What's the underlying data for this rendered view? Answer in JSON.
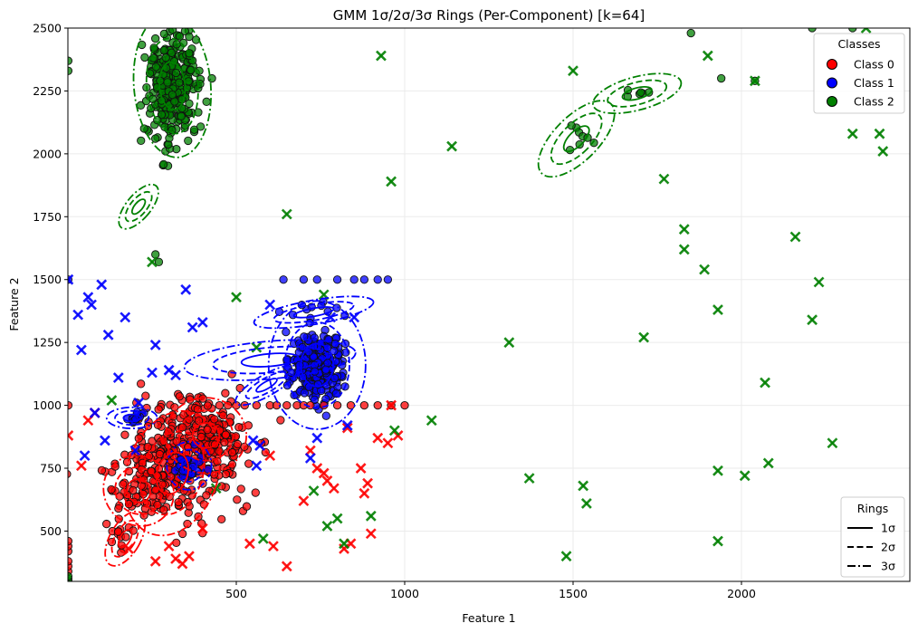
{
  "chart_data": {
    "type": "scatter",
    "title": "GMM 1σ/2σ/3σ Rings (Per-Component) [k=64]",
    "xlabel": "Feature 1",
    "ylabel": "Feature 2",
    "xlim": [
      0,
      2500
    ],
    "ylim": [
      300,
      2500
    ],
    "x_ticks": [
      500,
      1000,
      1500,
      2000
    ],
    "y_ticks": [
      500,
      750,
      1000,
      1250,
      1500,
      1750,
      2000,
      2250,
      2500
    ],
    "grid": true,
    "colors": {
      "Class 0": "#ff0000",
      "Class 1": "#0000ff",
      "Class 2": "#008000"
    },
    "legend_classes": {
      "title": "Classes",
      "placement": "top-right",
      "entries": [
        "Class 0",
        "Class 1",
        "Class 2"
      ]
    },
    "legend_rings": {
      "title": "Rings",
      "placement": "bottom-right",
      "entries": [
        {
          "label": "1σ",
          "style": "solid"
        },
        {
          "label": "2σ",
          "style": "dashed"
        },
        {
          "label": "3σ",
          "style": "dashdot"
        }
      ]
    },
    "clusters": [
      {
        "class": "Class 0",
        "marker": "circle",
        "cx": 330,
        "cy": 780,
        "sx": 85,
        "sy": 130,
        "n": 260
      },
      {
        "class": "Class 0",
        "marker": "circle",
        "cx": 420,
        "cy": 880,
        "sx": 55,
        "sy": 70,
        "n": 120
      },
      {
        "class": "Class 0",
        "marker": "circle",
        "cx": 200,
        "cy": 660,
        "sx": 45,
        "sy": 55,
        "n": 40
      },
      {
        "class": "Class 0",
        "marker": "circle",
        "cx": 160,
        "cy": 480,
        "sx": 15,
        "sy": 25,
        "n": 12
      },
      {
        "class": "Class 1",
        "marker": "circle",
        "cx": 740,
        "cy": 1150,
        "sx": 38,
        "sy": 70,
        "n": 260
      },
      {
        "class": "Class 1",
        "marker": "circle",
        "cx": 360,
        "cy": 760,
        "sx": 25,
        "sy": 35,
        "n": 35
      },
      {
        "class": "Class 1",
        "marker": "circle",
        "cx": 190,
        "cy": 950,
        "sx": 20,
        "sy": 12,
        "n": 12
      },
      {
        "class": "Class 1",
        "marker": "circle",
        "cx": 740,
        "cy": 1400,
        "sx": 50,
        "sy": 30,
        "n": 10
      },
      {
        "class": "Class 2",
        "marker": "circle",
        "cx": 310,
        "cy": 2270,
        "sx": 35,
        "sy": 110,
        "n": 320
      },
      {
        "class": "Class 2",
        "marker": "circle",
        "cx": 1520,
        "cy": 2060,
        "sx": 25,
        "sy": 40,
        "n": 8
      },
      {
        "class": "Class 2",
        "marker": "circle",
        "cx": 1690,
        "cy": 2240,
        "sx": 20,
        "sy": 15,
        "n": 6
      }
    ],
    "fixed_points": [
      {
        "class": "Class 0",
        "marker": "circle",
        "x": [
          450,
          475,
          500,
          525,
          560,
          600,
          620,
          650,
          680,
          700,
          720,
          760,
          800,
          840,
          880,
          920,
          960,
          1000,
          1
        ],
        "y": [
          1000,
          1000,
          1000,
          1000,
          1000,
          1000,
          1000,
          1000,
          1000,
          1000,
          1000,
          1000,
          1000,
          1000,
          1000,
          1000,
          1000,
          1000,
          1000
        ]
      },
      {
        "class": "Class 0",
        "marker": "circle",
        "x": [
          1,
          1,
          1,
          1,
          1,
          1
        ],
        "y": [
          340,
          360,
          380,
          420,
          440,
          460
        ]
      },
      {
        "class": "Class 1",
        "marker": "circle",
        "x": [
          1,
          640,
          700,
          740,
          800,
          850,
          880,
          920,
          950
        ],
        "y": [
          1500,
          1500,
          1500,
          1500,
          1500,
          1500,
          1500,
          1500,
          1500
        ]
      },
      {
        "class": "Class 2",
        "marker": "circle",
        "x": [
          1,
          1,
          260,
          270,
          360,
          1850,
          1940,
          2040,
          2210,
          2330
        ],
        "y": [
          2370,
          2330,
          1600,
          1570,
          2400,
          2480,
          2300,
          2290,
          2500,
          2500
        ]
      },
      {
        "class": "Class 2",
        "marker": "circle",
        "x": [
          1,
          1,
          1
        ],
        "y": [
          300,
          310,
          320
        ]
      }
    ],
    "x_points": [
      {
        "class": "Class 0",
        "marker": "x",
        "x": [
          1,
          40,
          60,
          80,
          180,
          260,
          300,
          320,
          340,
          360,
          400,
          540,
          600,
          610,
          650,
          700,
          720,
          740,
          760,
          770,
          790,
          820,
          830,
          840,
          870,
          880,
          890,
          900,
          920,
          950,
          960,
          980
        ],
        "y": [
          880,
          760,
          940,
          970,
          430,
          380,
          440,
          390,
          370,
          400,
          510,
          450,
          800,
          440,
          360,
          620,
          820,
          750,
          730,
          700,
          670,
          430,
          910,
          450,
          750,
          650,
          690,
          490,
          870,
          850,
          1000,
          880
        ]
      },
      {
        "class": "Class 1",
        "marker": "x",
        "x": [
          1,
          30,
          40,
          50,
          60,
          70,
          80,
          100,
          110,
          120,
          150,
          170,
          200,
          210,
          250,
          260,
          300,
          320,
          350,
          370,
          400,
          550,
          560,
          570,
          600,
          720,
          740,
          780,
          830,
          850
        ],
        "y": [
          1500,
          1360,
          1220,
          800,
          1430,
          1400,
          970,
          1480,
          860,
          1280,
          1110,
          1350,
          820,
          1010,
          1130,
          1240,
          1140,
          1120,
          1460,
          1310,
          1330,
          860,
          760,
          840,
          1400,
          790,
          870,
          1350,
          920,
          1350
        ]
      },
      {
        "class": "Class 2",
        "marker": "x",
        "x": [
          130,
          250,
          440,
          500,
          560,
          580,
          650,
          730,
          760,
          770,
          800,
          820,
          900,
          930,
          960,
          970,
          1080,
          1140,
          1310,
          1370,
          1480,
          1500,
          1530,
          1540,
          1710,
          1770,
          1830,
          1830,
          1890,
          1900,
          1930,
          1930,
          1930,
          2010,
          2040,
          2070,
          2080,
          2160,
          2210,
          2230,
          2270,
          2330,
          2370,
          2410,
          2420
        ],
        "y": [
          1020,
          1570,
          670,
          1430,
          1230,
          470,
          1760,
          660,
          1440,
          520,
          550,
          450,
          560,
          2390,
          1890,
          900,
          940,
          2030,
          1250,
          710,
          400,
          2330,
          680,
          610,
          1270,
          1900,
          1700,
          1620,
          1540,
          2390,
          1380,
          740,
          460,
          720,
          2290,
          1090,
          770,
          1670,
          1340,
          1490,
          850,
          2080,
          2500,
          2080,
          2010
        ]
      }
    ],
    "rings": [
      {
        "class": "Class 2",
        "cx": 310,
        "cy": 2270,
        "rx": 38,
        "ry": 95,
        "angle": -5
      },
      {
        "class": "Class 2",
        "cx": 1510,
        "cy": 2060,
        "rx": 22,
        "ry": 65,
        "angle": 45
      },
      {
        "class": "Class 2",
        "cx": 1690,
        "cy": 2240,
        "rx": 45,
        "ry": 22,
        "angle": -15
      },
      {
        "class": "Class 2",
        "cx": 210,
        "cy": 1790,
        "rx": 12,
        "ry": 36,
        "angle": 40
      },
      {
        "class": "Class 1",
        "cx": 740,
        "cy": 1160,
        "rx": 48,
        "ry": 85,
        "angle": 0
      },
      {
        "class": "Class 1",
        "cx": 600,
        "cy": 1180,
        "rx": 85,
        "ry": 25,
        "angle": -5
      },
      {
        "class": "Class 1",
        "cx": 730,
        "cy": 1370,
        "rx": 60,
        "ry": 16,
        "angle": -10
      },
      {
        "class": "Class 1",
        "cx": 590,
        "cy": 1080,
        "rx": 35,
        "ry": 14,
        "angle": -30
      },
      {
        "class": "Class 1",
        "cx": 190,
        "cy": 950,
        "rx": 25,
        "ry": 14,
        "angle": 0
      },
      {
        "class": "Class 1",
        "cx": 360,
        "cy": 760,
        "rx": 22,
        "ry": 32,
        "angle": 10
      },
      {
        "class": "Class 0",
        "cx": 310,
        "cy": 730,
        "rx": 45,
        "ry": 85,
        "angle": 20
      },
      {
        "class": "Class 0",
        "cx": 410,
        "cy": 880,
        "rx": 40,
        "ry": 50,
        "angle": 0
      },
      {
        "class": "Class 0",
        "cx": 210,
        "cy": 660,
        "rx": 36,
        "ry": 45,
        "angle": 45
      },
      {
        "class": "Class 0",
        "cx": 170,
        "cy": 470,
        "rx": 15,
        "ry": 40,
        "angle": 30
      }
    ]
  }
}
